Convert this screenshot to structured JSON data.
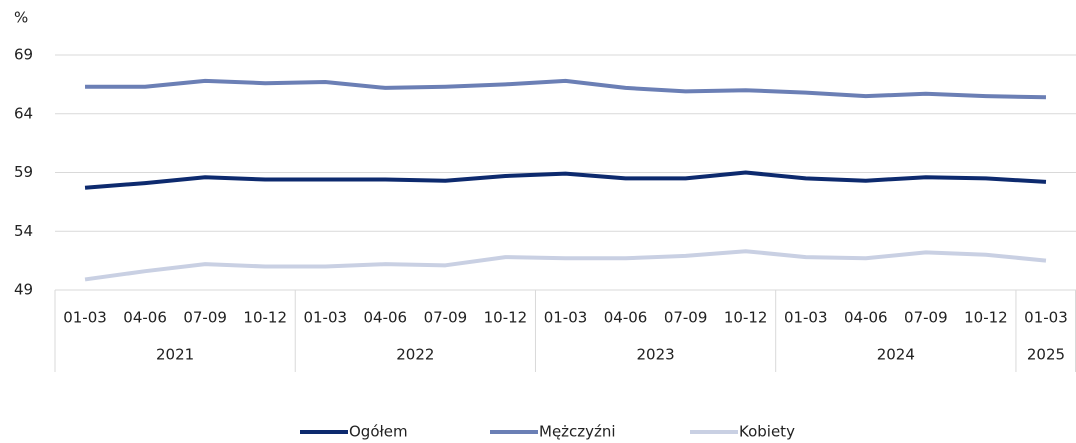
{
  "chart_data": {
    "type": "line",
    "y_unit_label": "%",
    "category_groups": [
      {
        "label": "2021",
        "categories": [
          "01-03",
          "04-06",
          "07-09",
          "10-12"
        ]
      },
      {
        "label": "2022",
        "categories": [
          "01-03",
          "04-06",
          "07-09",
          "10-12"
        ]
      },
      {
        "label": "2023",
        "categories": [
          "01-03",
          "04-06",
          "07-09",
          "10-12"
        ]
      },
      {
        "label": "2024",
        "categories": [
          "01-03",
          "04-06",
          "07-09",
          "10-12"
        ]
      },
      {
        "label": "2025",
        "categories": [
          "01-03"
        ]
      }
    ],
    "series": [
      {
        "name": "Ogółem",
        "color": "#0d2a6e",
        "values": [
          57.7,
          58.1,
          58.6,
          58.4,
          58.4,
          58.4,
          58.3,
          58.7,
          58.9,
          58.5,
          58.5,
          59.0,
          58.5,
          58.3,
          58.6,
          58.5,
          58.2
        ]
      },
      {
        "name": "Mężczyźni",
        "color": "#6b7fb5",
        "values": [
          66.3,
          66.3,
          66.8,
          66.6,
          66.7,
          66.2,
          66.3,
          66.5,
          66.8,
          66.2,
          65.9,
          66.0,
          65.8,
          65.5,
          65.7,
          65.5,
          65.4
        ]
      },
      {
        "name": "Kobiety",
        "color": "#c9d0e3",
        "values": [
          49.9,
          50.6,
          51.2,
          51.0,
          51.0,
          51.2,
          51.1,
          51.8,
          51.7,
          51.7,
          51.9,
          52.3,
          51.8,
          51.7,
          52.2,
          52.0,
          51.5
        ]
      }
    ],
    "ylim": [
      49,
      69
    ],
    "yticks": [
      49,
      54,
      59,
      64,
      69
    ],
    "grid": true,
    "legend": "bottom"
  }
}
